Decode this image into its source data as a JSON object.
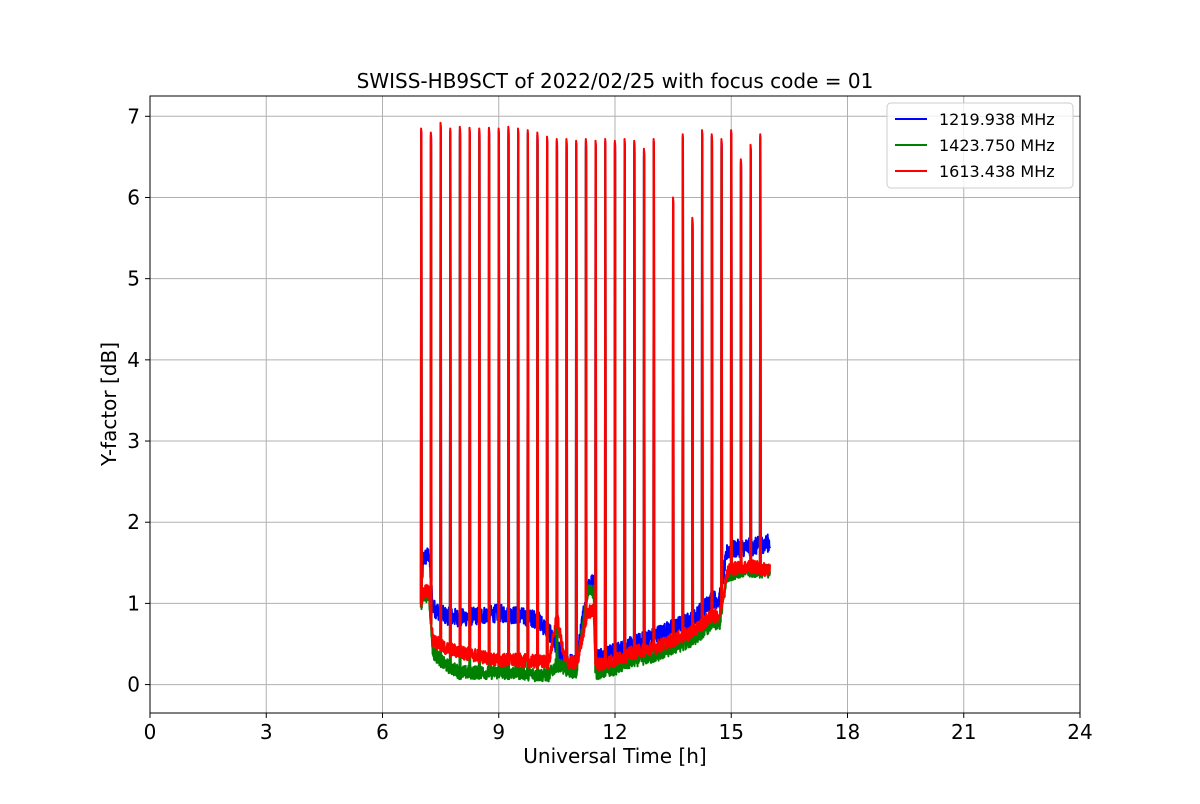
{
  "chart_data": {
    "type": "line",
    "title": "SWISS-HB9SCT of 2022/02/25 with focus code = 01",
    "xlabel": "Universal Time [h]",
    "ylabel": "Y-factor [dB]",
    "xlim": [
      0,
      24
    ],
    "ylim": [
      -0.35,
      7.25
    ],
    "xticks": [
      0,
      3,
      6,
      9,
      12,
      15,
      18,
      21,
      24
    ],
    "yticks": [
      0,
      1,
      2,
      3,
      4,
      5,
      6,
      7
    ],
    "grid": true,
    "legend_position": "top-right",
    "spike_times": [
      7.0,
      7.25,
      7.5,
      7.75,
      8.0,
      8.25,
      8.5,
      8.75,
      9.0,
      9.25,
      9.5,
      9.75,
      10.0,
      10.25,
      10.5,
      10.75,
      11.0,
      11.25,
      11.5,
      11.75,
      12.0,
      12.25,
      12.5,
      12.75,
      13.0,
      13.5,
      13.75,
      14.0,
      14.25,
      14.5,
      14.75,
      15.0,
      15.25,
      15.5,
      15.75
    ],
    "spike_peaks": [
      6.85,
      6.8,
      6.92,
      6.85,
      6.87,
      6.86,
      6.85,
      6.86,
      6.85,
      6.87,
      6.85,
      6.83,
      6.8,
      6.75,
      6.72,
      6.72,
      6.7,
      6.72,
      6.7,
      6.72,
      6.7,
      6.72,
      6.7,
      6.6,
      6.72,
      6.0,
      6.78,
      5.75,
      6.83,
      6.78,
      6.72,
      6.83,
      6.47,
      6.65,
      6.78
    ],
    "series": [
      {
        "name": "1219.938 MHz",
        "color": "#0000ff",
        "x": [
          7.0,
          7.05,
          7.2,
          7.3,
          7.6,
          8.0,
          8.5,
          9.0,
          9.5,
          10.0,
          10.3,
          10.5,
          10.7,
          11.0,
          11.3,
          11.45,
          11.5,
          11.6,
          12.0,
          12.5,
          13.0,
          13.5,
          14.0,
          14.5,
          14.7,
          14.9,
          15.2,
          15.6,
          16.0
        ],
        "y": [
          1.0,
          1.55,
          1.6,
          0.95,
          0.85,
          0.82,
          0.85,
          0.88,
          0.85,
          0.8,
          0.65,
          0.45,
          0.3,
          0.25,
          1.25,
          1.25,
          0.35,
          0.35,
          0.4,
          0.5,
          0.6,
          0.7,
          0.8,
          1.05,
          1.05,
          1.65,
          1.68,
          1.7,
          1.75
        ]
      },
      {
        "name": "1423.750 MHz",
        "color": "#008000",
        "x": [
          7.0,
          7.05,
          7.2,
          7.3,
          7.6,
          8.0,
          8.5,
          9.0,
          9.5,
          10.0,
          10.3,
          10.5,
          10.7,
          11.0,
          11.3,
          11.45,
          11.5,
          11.6,
          12.0,
          12.5,
          13.0,
          13.5,
          14.0,
          14.5,
          14.7,
          14.9,
          15.2,
          15.6,
          16.0
        ],
        "y": [
          0.95,
          1.1,
          1.1,
          0.4,
          0.25,
          0.15,
          0.15,
          0.15,
          0.15,
          0.12,
          0.12,
          0.25,
          0.2,
          0.15,
          1.15,
          1.15,
          0.15,
          0.15,
          0.2,
          0.3,
          0.35,
          0.45,
          0.55,
          0.75,
          0.75,
          1.35,
          1.4,
          1.4,
          1.4
        ]
      },
      {
        "name": "1613.438 MHz",
        "color": "#ff0000",
        "x": [
          7.0,
          7.05,
          7.2,
          7.3,
          7.6,
          8.0,
          8.5,
          9.0,
          9.5,
          10.0,
          10.3,
          10.5,
          10.7,
          11.0,
          11.3,
          11.45,
          11.5,
          11.6,
          12.0,
          12.5,
          13.0,
          13.5,
          14.0,
          14.5,
          14.7,
          14.9,
          15.2,
          15.6,
          16.0
        ],
        "y": [
          1.0,
          1.15,
          1.15,
          0.55,
          0.45,
          0.4,
          0.35,
          0.3,
          0.3,
          0.28,
          0.28,
          0.85,
          0.3,
          0.25,
          0.9,
          0.9,
          0.25,
          0.25,
          0.3,
          0.4,
          0.45,
          0.55,
          0.65,
          0.85,
          0.85,
          1.4,
          1.45,
          1.45,
          1.4
        ]
      }
    ]
  }
}
